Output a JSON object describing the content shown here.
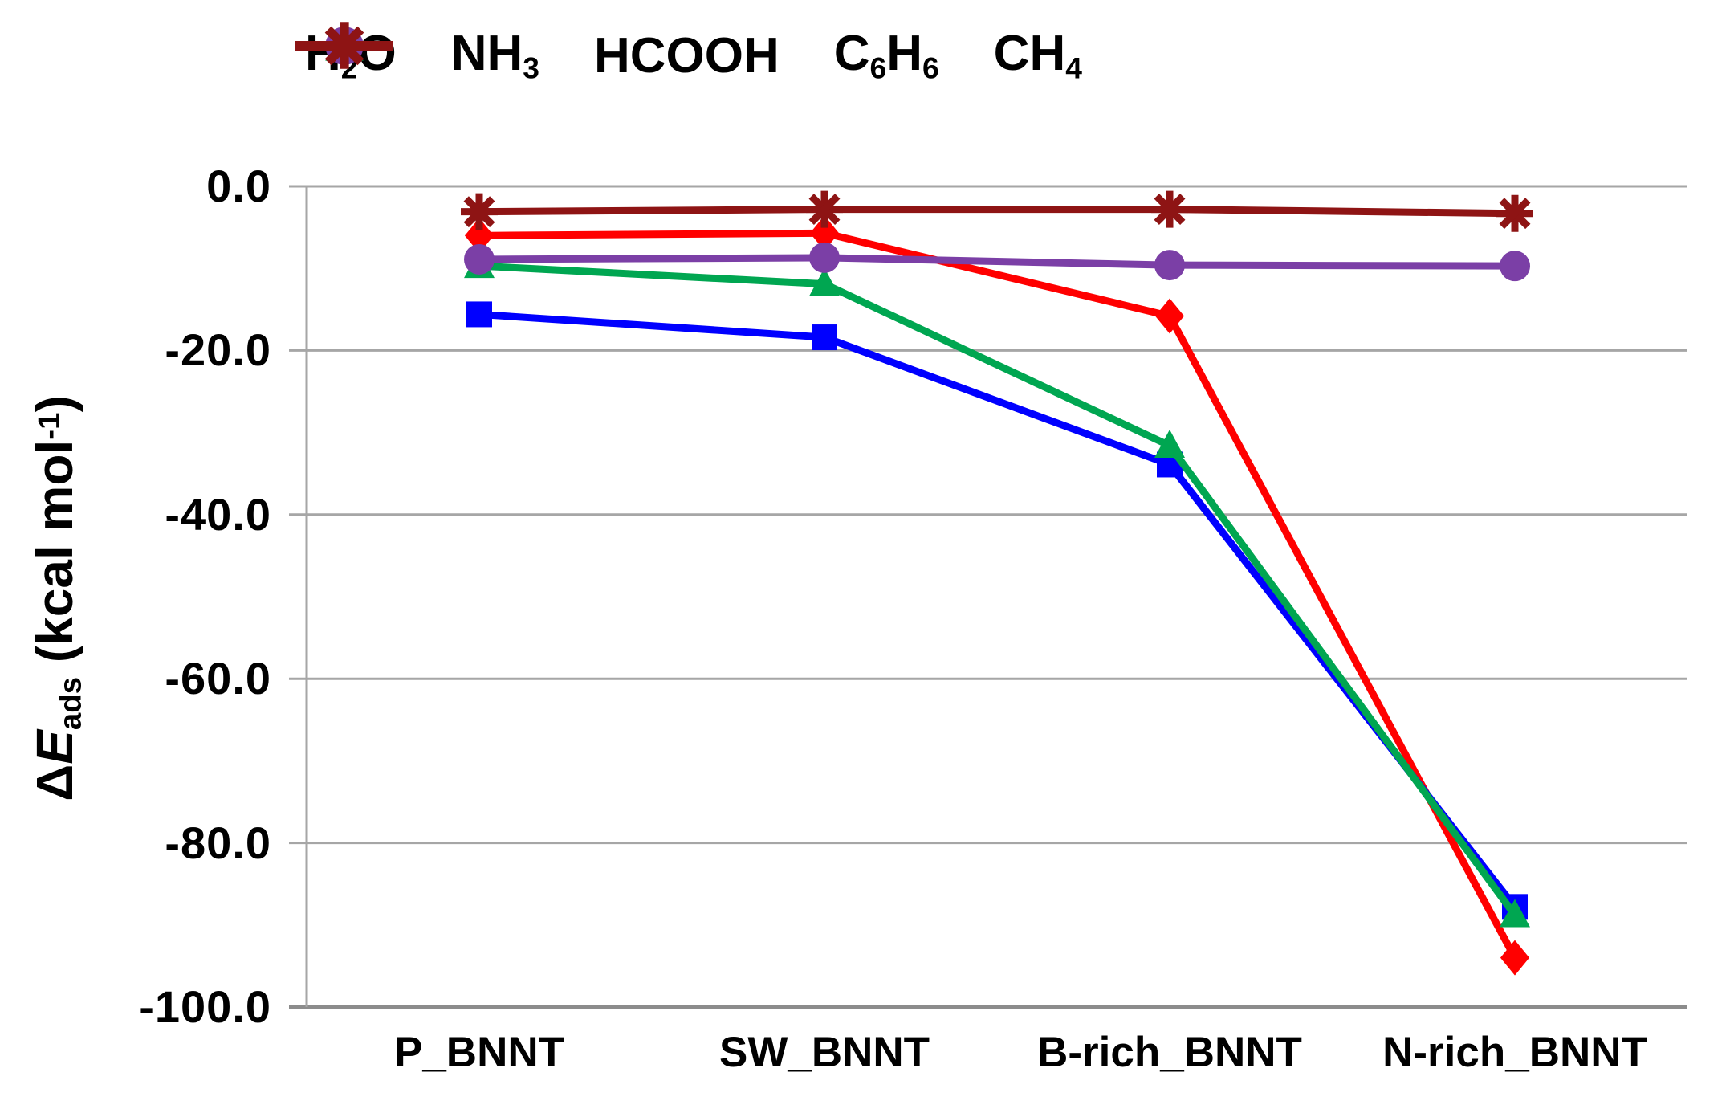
{
  "chart_data": {
    "type": "line",
    "title": "",
    "xlabel": "",
    "ylabel": "ΔE_ads (kcal mol-1)",
    "ylabel_parts": [
      [
        "t",
        "Δ"
      ],
      [
        "i",
        "E"
      ],
      [
        "sub",
        "ads"
      ],
      [
        "t",
        " (kcal mol"
      ],
      [
        "sup",
        "-1"
      ],
      [
        "t",
        ")"
      ]
    ],
    "categories": [
      "P_BNNT",
      "SW_BNNT",
      "B-rich_BNNT",
      "N-rich_BNNT"
    ],
    "series": [
      {
        "name": "H2O",
        "label_parts": [
          [
            "t",
            "H"
          ],
          [
            "sub",
            "2"
          ],
          [
            "t",
            "O"
          ]
        ],
        "color": "#ff0000",
        "marker": "diamond",
        "values": [
          -6.0,
          -5.7,
          -15.8,
          -94.0
        ]
      },
      {
        "name": "NH3",
        "label_parts": [
          [
            "t",
            "NH"
          ],
          [
            "sub",
            "3"
          ]
        ],
        "color": "#0000ff",
        "marker": "square",
        "values": [
          -15.6,
          -18.4,
          -33.9,
          -87.8
        ]
      },
      {
        "name": "HCOOH",
        "label_parts": [
          [
            "t",
            "HCOOH"
          ]
        ],
        "color": "#00a651",
        "marker": "triangle",
        "values": [
          -9.7,
          -11.9,
          -31.6,
          -88.8
        ]
      },
      {
        "name": "C6H6",
        "label_parts": [
          [
            "t",
            "C"
          ],
          [
            "sub",
            "6"
          ],
          [
            "t",
            "H"
          ],
          [
            "sub",
            "6"
          ]
        ],
        "color": "#7b3fa6",
        "marker": "circle",
        "values": [
          -8.9,
          -8.7,
          -9.6,
          -9.7
        ]
      },
      {
        "name": "CH4",
        "label_parts": [
          [
            "t",
            "CH"
          ],
          [
            "sub",
            "4"
          ]
        ],
        "color": "#8e1414",
        "marker": "asterisk",
        "values": [
          -3.1,
          -2.8,
          -2.8,
          -3.3
        ]
      }
    ],
    "yticks": [
      {
        "label": "0.0",
        "value": 0
      },
      {
        "label": "-20.0",
        "value": -20
      },
      {
        "label": "-40.0",
        "value": -40
      },
      {
        "label": "-60.0",
        "value": -60
      },
      {
        "label": "-80.0",
        "value": -80
      },
      {
        "label": "-100.0",
        "value": -100
      }
    ],
    "ylim": [
      -100,
      0
    ],
    "grid": true,
    "grid_color": "#a6a6a6",
    "axis_color": "#8c8c8c",
    "legend_position": "top"
  }
}
